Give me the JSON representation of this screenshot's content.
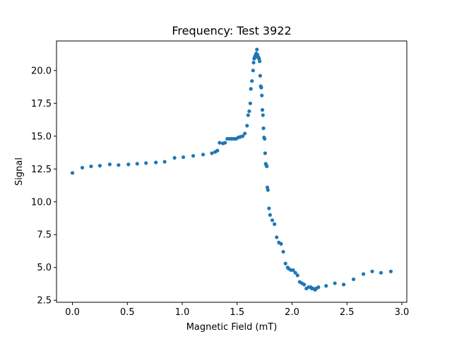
{
  "chart_data": {
    "type": "scatter",
    "title": "Frequency: Test 3922",
    "xlabel": "Magnetic Field (mT)",
    "ylabel": "Signal",
    "xlim": [
      -0.145,
      3.045
    ],
    "ylim": [
      2.35,
      22.25
    ],
    "xticks": [
      "0.0",
      "0.5",
      "1.0",
      "1.5",
      "2.0",
      "2.5",
      "3.0"
    ],
    "yticks": [
      "2.5",
      "5.0",
      "7.5",
      "10.0",
      "12.5",
      "15.0",
      "17.5",
      "20.0"
    ],
    "grid": false,
    "marker_color": "#1f77b4",
    "x": [
      0.0,
      0.09,
      0.17,
      0.25,
      0.34,
      0.42,
      0.51,
      0.59,
      0.67,
      0.76,
      0.84,
      0.93,
      1.01,
      1.1,
      1.19,
      1.27,
      1.3,
      1.32,
      1.34,
      1.37,
      1.39,
      1.41,
      1.43,
      1.45,
      1.47,
      1.49,
      1.51,
      1.53,
      1.55,
      1.57,
      1.59,
      1.6,
      1.61,
      1.62,
      1.625,
      1.635,
      1.645,
      1.65,
      1.655,
      1.66,
      1.665,
      1.67,
      1.675,
      1.68,
      1.685,
      1.69,
      1.695,
      1.7,
      1.705,
      1.71,
      1.715,
      1.72,
      1.725,
      1.73,
      1.735,
      1.74,
      1.745,
      1.75,
      1.755,
      1.76,
      1.765,
      1.77,
      1.775,
      1.78,
      1.79,
      1.8,
      1.82,
      1.84,
      1.86,
      1.88,
      1.9,
      1.92,
      1.94,
      1.96,
      1.97,
      1.99,
      2.01,
      2.03,
      2.05,
      2.07,
      2.09,
      2.11,
      2.13,
      2.15,
      2.17,
      2.18,
      2.19,
      2.21,
      2.22,
      2.24,
      2.31,
      2.39,
      2.47,
      2.56,
      2.65,
      2.73,
      2.81,
      2.9
    ],
    "y": [
      12.2,
      12.6,
      12.7,
      12.75,
      12.85,
      12.8,
      12.85,
      12.9,
      12.95,
      13.0,
      13.05,
      13.35,
      13.4,
      13.5,
      13.6,
      13.7,
      13.8,
      13.9,
      14.5,
      14.45,
      14.5,
      14.8,
      14.8,
      14.8,
      14.8,
      14.8,
      14.9,
      14.95,
      15.0,
      15.2,
      15.8,
      16.6,
      16.9,
      17.5,
      18.6,
      19.2,
      20.0,
      20.6,
      20.9,
      21.0,
      21.1,
      21.2,
      21.3,
      21.6,
      21.2,
      21.0,
      21.0,
      20.9,
      20.7,
      19.6,
      18.8,
      18.7,
      18.1,
      17.0,
      16.6,
      15.6,
      14.9,
      14.8,
      13.7,
      12.9,
      12.8,
      12.7,
      11.1,
      10.9,
      9.5,
      9.0,
      8.6,
      8.3,
      7.3,
      6.9,
      6.8,
      6.2,
      5.3,
      5.0,
      4.9,
      4.8,
      4.8,
      4.6,
      4.4,
      3.9,
      3.8,
      3.7,
      3.4,
      3.5,
      3.5,
      3.4,
      3.4,
      3.3,
      3.4,
      3.5,
      3.6,
      3.8,
      3.7,
      4.1,
      4.5,
      4.7,
      4.6,
      4.7
    ]
  }
}
